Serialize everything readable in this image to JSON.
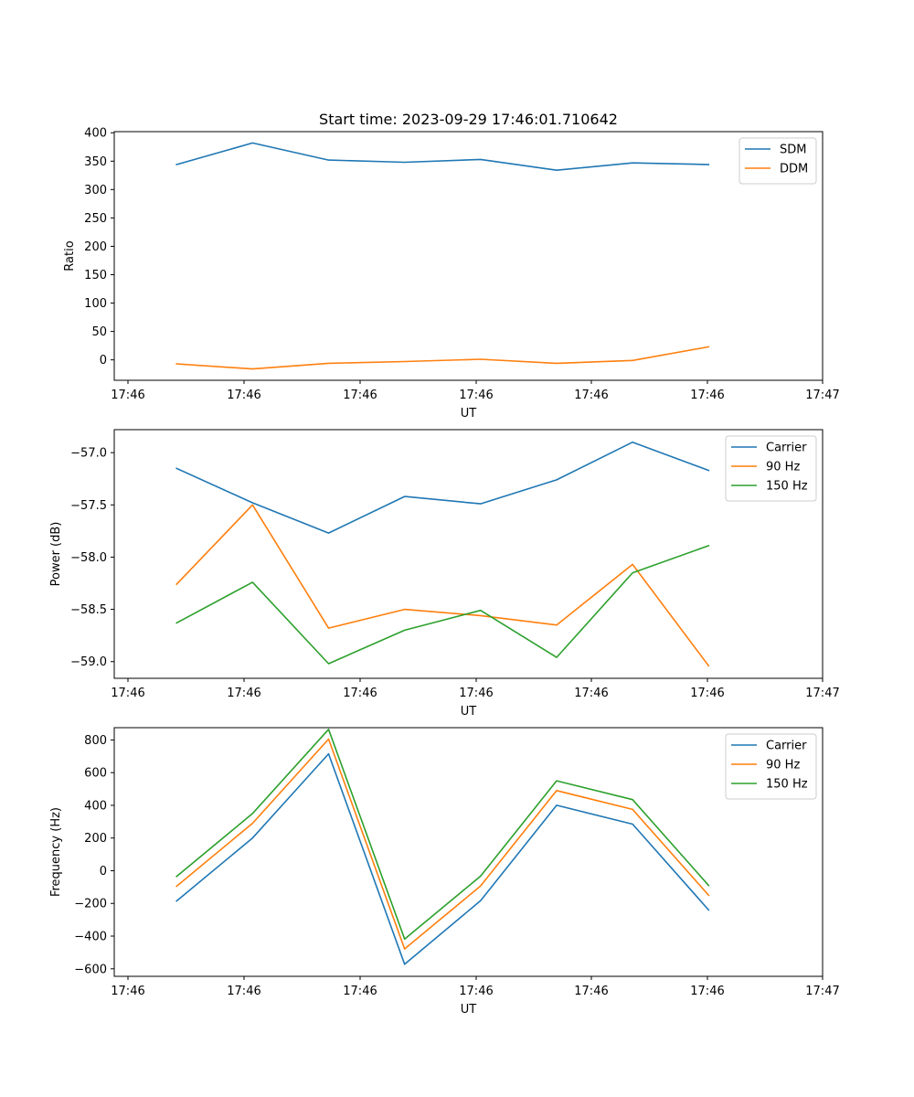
{
  "figure": {
    "suptitle": "Start time: 2023-09-29 17:46:01.710642"
  },
  "chart_data": [
    {
      "type": "line",
      "title": "",
      "xlabel": "UT",
      "ylabel": "Ratio",
      "x_tick_labels": [
        "17:46",
        "17:46",
        "17:46",
        "17:46",
        "17:46",
        "17:46",
        "17:47"
      ],
      "ylim": [
        -36,
        402
      ],
      "yticks": [
        0,
        50,
        100,
        150,
        200,
        250,
        300,
        350,
        400
      ],
      "legend_position": "top-right",
      "x": [
        1,
        2,
        3,
        4,
        5,
        6,
        7,
        8
      ],
      "xlim": [
        0.18,
        9.5
      ],
      "series": [
        {
          "name": "SDM",
          "color": "#1f77b4",
          "values": [
            344,
            382,
            352,
            348,
            353,
            334,
            347,
            344
          ]
        },
        {
          "name": "DDM",
          "color": "#ff7f0e",
          "values": [
            -7,
            -16,
            -6,
            -3,
            1,
            -6,
            -1,
            23
          ]
        }
      ]
    },
    {
      "type": "line",
      "title": "",
      "xlabel": "UT",
      "ylabel": "Power (dB)",
      "x_tick_labels": [
        "17:46",
        "17:46",
        "17:46",
        "17:46",
        "17:46",
        "17:46",
        "17:47"
      ],
      "ylim": [
        -59.16,
        -56.78
      ],
      "yticks": [
        -59.0,
        -58.5,
        -58.0,
        -57.5,
        -57.0
      ],
      "legend_position": "top-right",
      "x": [
        1,
        2,
        3,
        4,
        5,
        6,
        7,
        8
      ],
      "xlim": [
        0.18,
        9.5
      ],
      "series": [
        {
          "name": "Carrier",
          "color": "#1f77b4",
          "values": [
            -57.15,
            -57.48,
            -57.77,
            -57.42,
            -57.49,
            -57.26,
            -56.9,
            -57.17
          ]
        },
        {
          "name": "90 Hz",
          "color": "#ff7f0e",
          "values": [
            -58.26,
            -57.5,
            -58.68,
            -58.5,
            -58.56,
            -58.65,
            -58.07,
            -59.04
          ]
        },
        {
          "name": "150 Hz",
          "color": "#2ca02c",
          "values": [
            -58.63,
            -58.24,
            -59.02,
            -58.7,
            -58.51,
            -58.96,
            -58.15,
            -57.89
          ]
        }
      ]
    },
    {
      "type": "line",
      "title": "",
      "xlabel": "UT",
      "ylabel": "Frequency (Hz)",
      "x_tick_labels": [
        "17:46",
        "17:46",
        "17:46",
        "17:46",
        "17:46",
        "17:46",
        "17:47"
      ],
      "ylim": [
        -646,
        875
      ],
      "yticks": [
        -600,
        -400,
        -200,
        0,
        200,
        400,
        600,
        800
      ],
      "legend_position": "top-right",
      "x": [
        1,
        2,
        3,
        4,
        5,
        6,
        7,
        8
      ],
      "xlim": [
        0.18,
        9.5
      ],
      "series": [
        {
          "name": "Carrier",
          "color": "#1f77b4",
          "values": [
            -185,
            200,
            715,
            -572,
            -183,
            400,
            285,
            -240
          ]
        },
        {
          "name": "90 Hz",
          "color": "#ff7f0e",
          "values": [
            -95,
            290,
            805,
            -478,
            -93,
            490,
            375,
            -150
          ]
        },
        {
          "name": "150 Hz",
          "color": "#2ca02c",
          "values": [
            -35,
            350,
            865,
            -418,
            -33,
            550,
            435,
            -90
          ]
        }
      ]
    }
  ]
}
